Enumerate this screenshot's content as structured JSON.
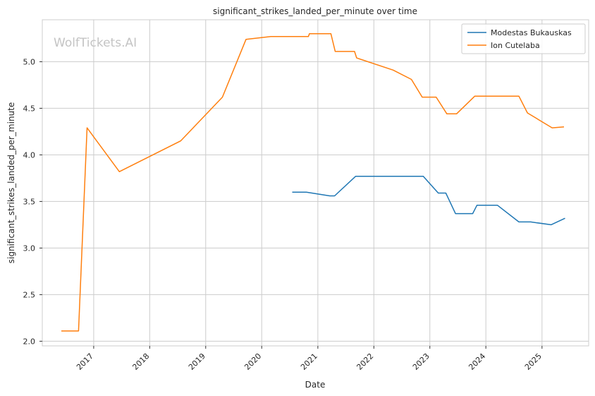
{
  "chart_data": {
    "type": "line",
    "title": "significant_strikes_landed_per_minute over time",
    "xlabel": "Date",
    "ylabel": "significant_strikes_landed_per_minute",
    "watermark": "WolfTickets.AI",
    "xlim": [
      "2016-02-01",
      "2025-11-01"
    ],
    "ylim": [
      1.95,
      5.45
    ],
    "x_ticks": [
      "2017",
      "2018",
      "2019",
      "2020",
      "2021",
      "2022",
      "2023",
      "2024",
      "2025"
    ],
    "y_ticks": [
      "2.0",
      "2.5",
      "3.0",
      "3.5",
      "4.0",
      "4.5",
      "5.0"
    ],
    "grid": true,
    "legend_position": "top-right",
    "series": [
      {
        "name": "Modestas Bukauskas",
        "color": "#1f77b4",
        "points": [
          [
            "2020-07-18",
            3.6
          ],
          [
            "2020-10-18",
            3.6
          ],
          [
            "2021-03-20",
            3.56
          ],
          [
            "2021-04-20",
            3.56
          ],
          [
            "2021-09-04",
            3.77
          ],
          [
            "2022-11-19",
            3.77
          ],
          [
            "2023-02-25",
            3.59
          ],
          [
            "2023-04-15",
            3.59
          ],
          [
            "2023-06-17",
            3.37
          ],
          [
            "2023-10-07",
            3.37
          ],
          [
            "2023-11-04",
            3.46
          ],
          [
            "2024-03-16",
            3.46
          ],
          [
            "2024-08-03",
            3.28
          ],
          [
            "2024-10-19",
            3.28
          ],
          [
            "2025-03-01",
            3.25
          ],
          [
            "2025-05-31",
            3.32
          ]
        ]
      },
      {
        "name": "Ion Cutelaba",
        "color": "#ff7f0e",
        "points": [
          [
            "2016-06-04",
            2.11
          ],
          [
            "2016-09-24",
            2.11
          ],
          [
            "2016-11-19",
            4.29
          ],
          [
            "2017-06-17",
            3.82
          ],
          [
            "2018-07-22",
            4.15
          ],
          [
            "2019-04-20",
            4.62
          ],
          [
            "2019-09-21",
            5.24
          ],
          [
            "2020-02-29",
            5.27
          ],
          [
            "2020-10-31",
            5.27
          ],
          [
            "2020-11-07",
            5.3
          ],
          [
            "2021-03-27",
            5.3
          ],
          [
            "2021-04-24",
            5.11
          ],
          [
            "2021-08-28",
            5.11
          ],
          [
            "2021-09-11",
            5.04
          ],
          [
            "2022-05-07",
            4.91
          ],
          [
            "2022-09-03",
            4.81
          ],
          [
            "2022-11-12",
            4.62
          ],
          [
            "2023-02-11",
            4.62
          ],
          [
            "2023-04-22",
            4.44
          ],
          [
            "2023-06-24",
            4.44
          ],
          [
            "2023-10-21",
            4.63
          ],
          [
            "2024-08-03",
            4.63
          ],
          [
            "2024-09-28",
            4.45
          ],
          [
            "2025-03-08",
            4.29
          ],
          [
            "2025-05-24",
            4.3
          ]
        ]
      }
    ]
  }
}
